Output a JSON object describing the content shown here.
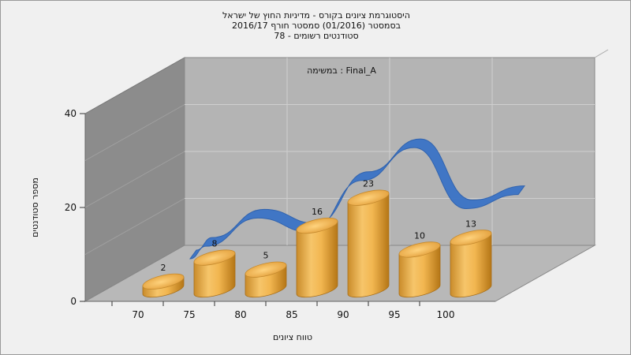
{
  "chart_data": {
    "type": "bar",
    "title_lines": [
      "היסטוגרמת ציונים בקורס - מדיניות החוץ של ישראל",
      "בסמסטר  (01/2016)  סמסטר חורף 2016/17",
      "סטודנטים רשומים - 78"
    ],
    "subtitle": "במשימה : Final_A",
    "xlabel": "טווח ציונים",
    "ylabel": "מספר סטודנטים",
    "x_ticks": [
      "70",
      "75",
      "80",
      "85",
      "90",
      "95",
      "100"
    ],
    "y_ticks": [
      0,
      20,
      40
    ],
    "ylim": [
      0,
      40
    ],
    "values": [
      2,
      8,
      5,
      16,
      23,
      10,
      13
    ],
    "bar_labels": [
      "2",
      "8",
      "5",
      "16",
      "23",
      "10",
      "13"
    ],
    "series": [
      {
        "type": "cylinder-bars",
        "values": [
          2,
          8,
          5,
          16,
          23,
          10,
          13
        ]
      },
      {
        "type": "smoothed-ribbon"
      }
    ],
    "grid": true,
    "colors": {
      "bar": "#f2b650",
      "ribbon": "#3a73c6",
      "back_wall": "#b4b4b4",
      "left_wall": "#8c8c8c",
      "floor": "#b8b8b8"
    }
  }
}
